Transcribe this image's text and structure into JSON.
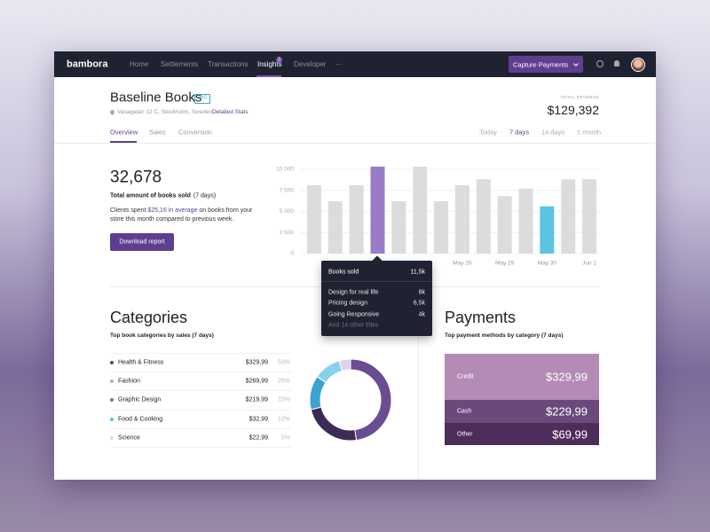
{
  "nav": {
    "logo": "bambora",
    "items": [
      "Home",
      "Settlements",
      "Transactions",
      "Insights",
      "Developer",
      "···"
    ],
    "badge": "2",
    "button": "Capture Payments"
  },
  "header": {
    "title": "Baseline Books",
    "badge": "PRO",
    "address": "Vasagatan 12 C, Stockholm, Sweden",
    "link": "Detailed Stats",
    "revenue_label": "TOTAL REVENUE",
    "revenue": "$129,392"
  },
  "tabs": [
    "Overview",
    "Sales",
    "Conversion"
  ],
  "ranges": [
    "Today",
    "7 days",
    "14 days",
    "1 month"
  ],
  "summary": {
    "value": "32,678",
    "label": "Total amount of books sold",
    "label_suffix": "(7 days)",
    "text_before": "Clients spent ",
    "text_highlight": "$25,16 in average",
    "text_after": " on books from your store this month compared to previous week.",
    "button": "Download report"
  },
  "tooltip": {
    "title": "Books sold",
    "value": "11,5k",
    "rows": [
      [
        "Design for real life",
        "8k"
      ],
      [
        "Pricing design",
        "6,5k"
      ],
      [
        "Going Responsive",
        "4k"
      ]
    ],
    "footer": "And 14 other titles"
  },
  "categories_panel": {
    "title": "Categories",
    "subtitle": "Top book categories by sales (7 days)",
    "amounts": [
      "$329,99",
      "$269,99",
      "$219,99",
      "$32,99",
      "$22,99"
    ]
  },
  "payments": {
    "title": "Payments",
    "subtitle": "Top payment methods by category (7 days)",
    "rows": [
      [
        "Credit",
        "$329,99"
      ],
      [
        "Cash",
        "$229,99"
      ],
      [
        "Other",
        "$69,99"
      ]
    ]
  },
  "chart_data": [
    {
      "type": "bar",
      "categories": [
        null,
        null,
        null,
        null,
        null,
        null,
        null,
        "May 26",
        null,
        "May 29",
        null,
        "May 30",
        null,
        "Jun 1"
      ],
      "values": [
        8100,
        6200,
        8100,
        10300,
        6200,
        10300,
        6200,
        8100,
        8800,
        6800,
        7700,
        5600,
        8800,
        8800
      ],
      "colors": [
        "#dcdcdf",
        "#dcdcdf",
        "#dcdcdf",
        "#9a7cc6",
        "#dcdcdf",
        "#dcdcdf",
        "#dcdcdf",
        "#dcdcdf",
        "#dcdcdf",
        "#dcdcdf",
        "#dcdcdf",
        "#5cc3e2",
        "#dcdcdf",
        "#dcdcdf"
      ],
      "ylim": [
        0,
        10500
      ],
      "yticks": [
        0,
        {
          "value": 2500,
          "label": "2 500"
        },
        {
          "value": 5000,
          "label": "5 000"
        },
        {
          "value": 7500,
          "label": "7 500"
        },
        {
          "value": 10000,
          "label": "10 000"
        }
      ],
      "grid": true
    },
    {
      "type": "pie",
      "categories": [
        "Health & Fitness",
        "Fashion",
        "Graphic Design",
        "Food & Cooking",
        "Science"
      ],
      "values": [
        53,
        26,
        15,
        12,
        5
      ],
      "value_labels": [
        "53%",
        "26%",
        "15%",
        "12%",
        "5%"
      ],
      "colors": [
        "#6a4c93",
        "#3e2a57",
        "#3aa3cf",
        "#86d2ea",
        "#dcd2ea"
      ],
      "legend_colors": [
        "#5b3d87",
        "#c9a1c9",
        "#2c8ed0",
        "#54c1e3",
        "#dddddd"
      ]
    }
  ]
}
